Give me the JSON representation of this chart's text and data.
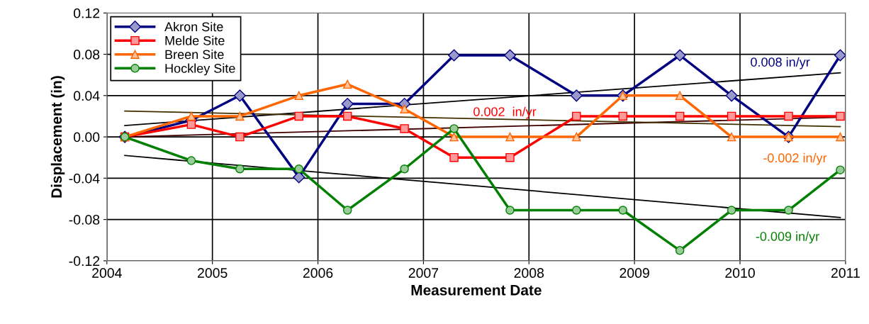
{
  "chart_data": {
    "type": "line",
    "xlabel": "Measurement Date",
    "ylabel": "Displacement (in)",
    "x": [
      2004.17,
      2004.8,
      2005.26,
      2005.82,
      2006.28,
      2006.82,
      2007.29,
      2007.82,
      2008.45,
      2008.89,
      2009.43,
      2009.92,
      2010.46,
      2010.95
    ],
    "series": [
      {
        "name": "Akron Site",
        "color": "#000080",
        "marker": "diamond",
        "values": [
          0,
          0.016,
          0.04,
          -0.039,
          0.032,
          0.032,
          0.079,
          0.079,
          0.04,
          0.04,
          0.079,
          0.04,
          0,
          0.079
        ]
      },
      {
        "name": "Melde Site",
        "color": "#ff0000",
        "marker": "square",
        "values": [
          0,
          0.012,
          0,
          0.02,
          0.02,
          0.008,
          -0.02,
          -0.02,
          0.02,
          0.02,
          0.02,
          0.02,
          0.02,
          0.02
        ]
      },
      {
        "name": "Breen Site",
        "color": "#ff6600",
        "marker": "triangle",
        "values": [
          0,
          0.02,
          0.02,
          0.04,
          0.051,
          0.027,
          0,
          0,
          0,
          0.04,
          0.04,
          0,
          0,
          0
        ]
      },
      {
        "name": "Hockley Site",
        "color": "#008000",
        "marker": "circle",
        "values": [
          0,
          -0.023,
          -0.031,
          -0.031,
          -0.071,
          -0.031,
          0.008,
          -0.071,
          -0.071,
          -0.071,
          -0.11,
          -0.071,
          -0.071,
          -0.032
        ]
      },
      {
        "color": "#000000",
        "marker": "none",
        "values": [
          0.011,
          null,
          null,
          null,
          null,
          null,
          null,
          null,
          null,
          null,
          null,
          null,
          null,
          0.062
        ]
      },
      {
        "color": "#400000",
        "marker": "none",
        "values": [
          0.0,
          null,
          null,
          null,
          null,
          null,
          null,
          null,
          null,
          null,
          null,
          null,
          null,
          0.019
        ]
      },
      {
        "color": "#403000",
        "marker": "none",
        "values": [
          0.025,
          null,
          null,
          null,
          null,
          null,
          null,
          null,
          null,
          null,
          null,
          null,
          null,
          0.01
        ]
      },
      {
        "color": "#000000",
        "marker": "none",
        "values": [
          -0.018,
          null,
          null,
          null,
          null,
          null,
          null,
          null,
          null,
          null,
          null,
          null,
          null,
          -0.078
        ]
      }
    ],
    "annotations": [
      {
        "text": "0.008 in/yr",
        "x": 2010.38,
        "y": 0.058
      },
      {
        "text": "0.002  in/yr",
        "x": 2007.77,
        "y": 0.01
      },
      {
        "text": "-0.002 in/yr",
        "x": 2010.52,
        "y": 0.011
      },
      {
        "text": "-0.009 in/yr",
        "x": 2010.45,
        "y": -0.0736
      }
    ],
    "xlim": [
      2004,
      2011
    ],
    "xticks": [
      2004,
      2005,
      2006,
      2007,
      2008,
      2009,
      2010,
      2011
    ],
    "ylim": [
      -0.12,
      0.12
    ],
    "yticks": [
      {
        "value": -0.12,
        "label": "-0.12"
      },
      {
        "value": -0.08,
        "label": "-0.08"
      },
      {
        "value": -0.04,
        "label": "-0.04"
      },
      {
        "value": 0,
        "label": "0.00"
      },
      {
        "value": 0.04,
        "label": "0.04"
      },
      {
        "value": 0.08,
        "label": "0.08"
      },
      {
        "value": 0.12,
        "label": "0.12"
      }
    ],
    "grid": true,
    "legend": "top left",
    "line_style": "solid"
  }
}
